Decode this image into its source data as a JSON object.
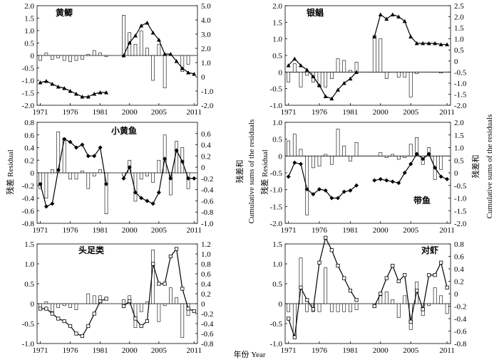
{
  "figure": {
    "xlabel": "年份 Year",
    "left_ylabel": "残差 Residual",
    "right_ylabel_cn": "残差和",
    "right_ylabel_en": "Cumulative sums of the residuals",
    "x_ticks": [
      "1971",
      "1976",
      "1981",
      "2000",
      "2005",
      "2011"
    ]
  },
  "chart_data": [
    {
      "type": "bar+line",
      "title": "黄鲫",
      "ylim_left": [
        -2.0,
        2.0
      ],
      "yticks_left": [
        "2.0",
        "1.5",
        "1.0",
        "0.5",
        "0",
        "-0.5",
        "-1.0",
        "-1.5",
        "-2.0"
      ],
      "ylim_right": [
        -2.0,
        5.0
      ],
      "yticks_right": [
        "5.0",
        "4.0",
        "3.0",
        "2.0",
        "1.0",
        "0",
        "-1.0",
        "-2.0"
      ],
      "period1": {
        "years": [
          1971,
          1972,
          1973,
          1974,
          1975,
          1976,
          1977,
          1978,
          1979,
          1980,
          1981,
          1982
        ],
        "residual": [
          -0.2,
          0.1,
          -0.15,
          -0.1,
          -0.2,
          -0.25,
          -0.2,
          -0.15,
          0.05,
          0.2,
          0.1,
          -0.05
        ],
        "cumsum": [
          -0.4,
          -0.3,
          -0.5,
          -0.7,
          -0.8,
          -1.0,
          -1.2,
          -1.4,
          -1.4,
          -1.2,
          -1.1,
          -1.1
        ]
      },
      "period2": {
        "years": [
          1999,
          2000,
          2001,
          2002,
          2003,
          2004,
          2005,
          2006,
          2007,
          2008,
          2009,
          2010,
          2011
        ],
        "residual": [
          1.62,
          0.92,
          0.45,
          0.98,
          0.3,
          -1.0,
          0.45,
          -1.3,
          0.0,
          0.0,
          -0.65,
          -0.35,
          0.0
        ],
        "cumsum": [
          1.5,
          2.4,
          2.9,
          3.6,
          3.8,
          3.1,
          2.6,
          1.6,
          1.6,
          1.1,
          0.6,
          0.3,
          0.2
        ]
      }
    },
    {
      "type": "bar+line",
      "title": "银鲳",
      "ylim_left": [
        -1.0,
        2.0
      ],
      "yticks_left": [
        "2.0",
        "1.5",
        "1.0",
        "0.5",
        "0",
        "-0.5",
        "-1.0"
      ],
      "ylim_right": [
        -2.0,
        2.5
      ],
      "yticks_right": [
        "2.5",
        "2.0",
        "1.5",
        "1.0",
        "0.5",
        "0",
        "-0.5",
        "-1.0",
        "-1.5",
        "-2.0"
      ],
      "period1": {
        "years": [
          1971,
          1972,
          1973,
          1974,
          1975,
          1976,
          1977,
          1978,
          1979,
          1980,
          1981,
          1982
        ],
        "residual": [
          -0.3,
          0.25,
          -0.45,
          -0.1,
          -0.3,
          -0.45,
          -0.45,
          -0.2,
          0.4,
          0.35,
          0.05,
          0.3
        ],
        "cumsum": [
          -0.2,
          0.1,
          -0.2,
          -0.4,
          -0.7,
          -1.1,
          -1.6,
          -1.7,
          -1.3,
          -1.0,
          -0.8,
          -0.5
        ]
      },
      "period2": {
        "years": [
          1999,
          2000,
          2001,
          2002,
          2003,
          2004,
          2005,
          2006,
          2007,
          2008,
          2009,
          2010,
          2011
        ],
        "residual": [
          1.1,
          1.0,
          -0.2,
          0.0,
          -0.15,
          -0.15,
          -0.75,
          -0.05,
          0.0,
          0.0,
          0.0,
          -0.03,
          0.0
        ],
        "cumsum": [
          1.1,
          2.1,
          1.9,
          2.1,
          2.0,
          1.8,
          1.1,
          0.8,
          0.8,
          0.8,
          0.8,
          0.75,
          0.75
        ]
      }
    },
    {
      "type": "bar+line",
      "title": "小黄鱼",
      "ylim_left": [
        -0.8,
        0.8
      ],
      "yticks_left": [
        "0.8",
        "0.6",
        "0.4",
        "0.2",
        "0",
        "-0.2",
        "-0.4",
        "-0.6",
        "-0.8"
      ],
      "ylim_right": [
        -1.0,
        0.8
      ],
      "yticks_right": [
        "0.6",
        "0.4",
        "0.2",
        "0",
        "-0.2",
        "-0.4",
        "-0.6",
        "-0.8",
        "-1.0"
      ],
      "period1": {
        "years": [
          1971,
          1972,
          1973,
          1974,
          1975,
          1976,
          1977,
          1978,
          1979,
          1980,
          1981,
          1982
        ],
        "residual": [
          -0.25,
          -0.4,
          0.05,
          0.65,
          0.55,
          -0.1,
          -0.1,
          0.03,
          -0.25,
          -0.05,
          0.05,
          -0.65
        ],
        "cumsum": [
          -0.3,
          -0.7,
          -0.65,
          -0.05,
          0.5,
          0.45,
          0.35,
          0.4,
          0.2,
          0.2,
          0.35,
          -0.3
        ]
      },
      "period2": {
        "years": [
          1999,
          2000,
          2001,
          2002,
          2003,
          2004,
          2005,
          2006,
          2007,
          2008,
          2009,
          2010,
          2011
        ],
        "residual": [
          -0.05,
          0.2,
          -0.45,
          -0.1,
          -0.05,
          -0.15,
          0.2,
          0.6,
          -0.35,
          0.5,
          0.4,
          -0.25,
          0.0
        ],
        "cumsum": [
          -0.2,
          0.0,
          -0.45,
          -0.55,
          -0.6,
          -0.65,
          -0.45,
          0.15,
          -0.2,
          0.3,
          0.1,
          -0.2,
          -0.2
        ]
      }
    },
    {
      "type": "bar+line",
      "title": "带鱼",
      "ylim_left": [
        -2.0,
        1.0
      ],
      "yticks_left": [
        "1.0",
        "0.5",
        "0",
        "-0.5",
        "-1.0",
        "-1.5",
        "-2.0"
      ],
      "ylim_right": [
        -2.0,
        2.0
      ],
      "yticks_right": [
        "2.0",
        "1.5",
        "1.0",
        "0.5",
        "0",
        "-0.5",
        "-1.0",
        "-1.5",
        "-2.0"
      ],
      "period1": {
        "years": [
          1971,
          1972,
          1973,
          1974,
          1975,
          1976,
          1977,
          1978,
          1979,
          1980,
          1981,
          1982
        ],
        "residual": [
          0.45,
          0.65,
          0.2,
          -1.75,
          -0.35,
          -0.3,
          0.05,
          -0.25,
          0.8,
          0.3,
          -0.15,
          0.4
        ],
        "cumsum": [
          -0.15,
          0.4,
          0.35,
          -0.65,
          -0.85,
          -0.65,
          -0.7,
          -1.0,
          -1.0,
          -0.75,
          -0.7,
          -0.5
        ]
      },
      "period2": {
        "years": [
          1999,
          2000,
          2001,
          2002,
          2003,
          2004,
          2005,
          2006,
          2007,
          2008,
          2009,
          2010,
          2011
        ],
        "residual": [
          0.0,
          0.1,
          -0.05,
          0.05,
          -0.1,
          -0.05,
          0.35,
          0.55,
          -0.25,
          0.25,
          -0.7,
          -0.4,
          0.0
        ],
        "cumsum": [
          -0.3,
          -0.25,
          -0.3,
          -0.35,
          -0.4,
          0.0,
          0.35,
          0.75,
          0.55,
          0.75,
          0.2,
          -0.15,
          -0.25
        ]
      }
    },
    {
      "type": "bar+line",
      "title": "头足类",
      "ylim_left": [
        -1.0,
        1.5
      ],
      "yticks_left": [
        "1.5",
        "1.0",
        "0.5",
        "0",
        "-0.5",
        "-1.0"
      ],
      "ylim_right": [
        -0.8,
        1.2
      ],
      "yticks_right": [
        "1.2",
        "1.0",
        "0.8",
        "0.6",
        "0.4",
        "0.2",
        "0",
        "-0.2",
        "-0.4",
        "-0.6",
        "-0.8"
      ],
      "period1": {
        "years": [
          1971,
          1972,
          1973,
          1974,
          1975,
          1976,
          1977,
          1978,
          1979,
          1980,
          1981,
          1982
        ],
        "residual": [
          -0.1,
          0.05,
          -0.2,
          -0.1,
          -0.05,
          -0.1,
          -0.15,
          0.0,
          0.25,
          0.2,
          0.2,
          0.0
        ],
        "cumsum": [
          -0.1,
          -0.1,
          -0.2,
          -0.3,
          -0.35,
          -0.45,
          -0.6,
          -0.65,
          -0.45,
          -0.2,
          0.05,
          0.1
        ]
      },
      "period2": {
        "years": [
          1999,
          2000,
          2001,
          2002,
          2003,
          2004,
          2005,
          2006,
          2007,
          2008,
          2009,
          2010,
          2011
        ],
        "residual": [
          0.1,
          0.2,
          -0.6,
          -0.2,
          0.05,
          1.35,
          -0.45,
          -0.05,
          0.4,
          0.15,
          -0.85,
          -0.3,
          0.0
        ],
        "cumsum": [
          -0.05,
          0.05,
          -0.3,
          -0.45,
          -0.35,
          0.8,
          0.4,
          0.4,
          0.95,
          1.1,
          0.3,
          -0.1,
          -0.15
        ]
      }
    },
    {
      "type": "bar+line",
      "title": "对虾",
      "ylim_left": [
        -1.0,
        1.5
      ],
      "yticks_left": [
        "1.5",
        "1.0",
        "0.5",
        "0",
        "-0.5",
        "-1.0"
      ],
      "ylim_right": [
        -0.8,
        0.8
      ],
      "yticks_right": [
        "0.8",
        "0.6",
        "0.4",
        "0.2",
        "0",
        "-0.2",
        "-0.4",
        "-0.6",
        "-0.8"
      ],
      "period1": {
        "years": [
          1971,
          1972,
          1973,
          1974,
          1975,
          1976,
          1977,
          1978,
          1979,
          1980,
          1981,
          1982
        ],
        "residual": [
          -0.2,
          -0.8,
          1.15,
          -0.2,
          -0.2,
          -0.2,
          0.9,
          -0.2,
          -0.2,
          -0.2,
          -0.2,
          -0.15
        ],
        "cumsum": [
          -0.4,
          -0.7,
          0.1,
          -0.1,
          -0.25,
          0.5,
          0.9,
          0.7,
          0.45,
          0.25,
          0.05,
          -0.1
        ]
      },
      "period2": {
        "years": [
          1999,
          2000,
          2001,
          2002,
          2003,
          2004,
          2005,
          2006,
          2007,
          2008,
          2009,
          2010,
          2011
        ],
        "residual": [
          -0.1,
          0.2,
          0.3,
          0.1,
          -0.35,
          0.2,
          -0.65,
          0.55,
          -0.3,
          -0.05,
          0.4,
          0.2,
          -0.25
        ],
        "cumsum": [
          -0.2,
          0.0,
          0.25,
          0.45,
          0.2,
          0.3,
          -0.45,
          0.05,
          -0.25,
          0.3,
          0.3,
          0.5,
          0.1
        ]
      }
    }
  ]
}
